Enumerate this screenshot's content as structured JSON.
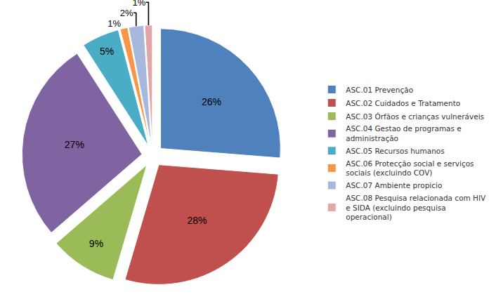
{
  "chart_data": {
    "type": "pie",
    "categories": [
      "ASC.01 Prevenção",
      "ASC.02 Cuidados e Tratamento",
      "ASC.03 Órfãos e crianças vulneráveis",
      "ASC.04 Gestao de programas e administração",
      "ASC.05 Recursos humanos",
      "ASC.06 Protecção social e serviços sociais (excluindo COV)",
      "ASC.07 Ambiente propicio",
      "ASC.08 Pesquisa relacionada com HIV e SIDA (excluindo pesquisa operacional)"
    ],
    "values": [
      26,
      28,
      9,
      27,
      5,
      1,
      2,
      1
    ],
    "value_labels": [
      "26%",
      "28%",
      "9%",
      "27%",
      "5%",
      "1%",
      "2%",
      "1%"
    ],
    "colors": [
      "#4f81bd",
      "#c0504d",
      "#9bbb59",
      "#8064a2",
      "#4bacc6",
      "#f79646",
      "#a6b9dc",
      "#e3a5a6"
    ],
    "data_labels": true,
    "legend": "right"
  }
}
